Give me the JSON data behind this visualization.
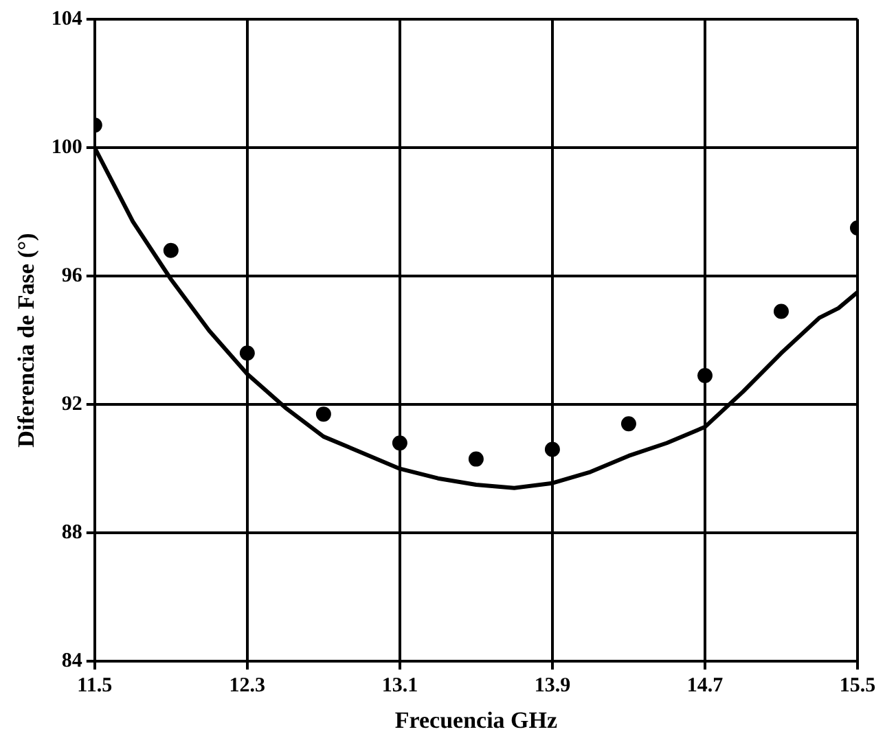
{
  "chart_data": {
    "type": "scatter",
    "xlabel": "Frecuencia GHz",
    "ylabel": "Diferencia de Fase (°)",
    "xlim": [
      11.5,
      15.5
    ],
    "xticks": [
      11.5,
      12.3,
      13.1,
      13.9,
      14.7,
      15.5
    ],
    "ylim": [
      84,
      104
    ],
    "yticks": [
      84,
      88,
      92,
      96,
      100,
      104
    ],
    "grid": true,
    "legend": false,
    "series": [
      {
        "marker": "circle",
        "color": "#000000",
        "x": [
          11.5,
          11.9,
          12.3,
          12.7,
          13.1,
          13.5,
          13.9,
          14.3,
          14.7,
          15.1,
          15.5
        ],
        "values": [
          100.7,
          96.8,
          93.6,
          91.7,
          90.8,
          90.3,
          90.6,
          91.4,
          92.9,
          94.9,
          97.5
        ]
      },
      {
        "type": "line",
        "marker": "none",
        "line_style": "solid",
        "color": "#000000",
        "x": [
          11.5,
          11.7,
          11.9,
          12.1,
          12.3,
          12.5,
          12.7,
          12.9,
          13.1,
          13.3,
          13.5,
          13.7,
          13.9,
          14.1,
          14.3,
          14.5,
          14.7,
          14.9,
          15.1,
          15.3,
          15.4,
          15.5
        ],
        "values": [
          100,
          97.7,
          95.9,
          94.3,
          92.95,
          91.9,
          91.0,
          90.5,
          90.0,
          89.7,
          89.5,
          89.4,
          89.55,
          89.9,
          90.4,
          90.8,
          91.3,
          92.4,
          93.6,
          94.7,
          95.0,
          95.5
        ]
      }
    ]
  }
}
